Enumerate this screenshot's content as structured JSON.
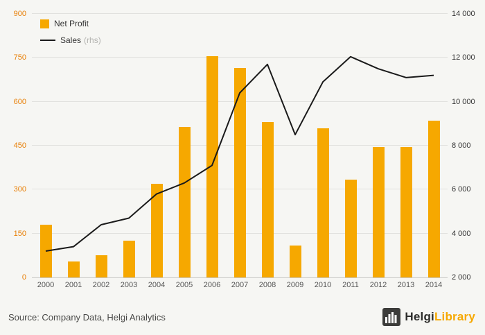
{
  "legend": {
    "net_profit_label": "Net Profit",
    "sales_label": "Sales",
    "sales_suffix": "(rhs)"
  },
  "footer": {
    "source": "Source: Company Data, Helgi Analytics",
    "logo_primary": "Helgi",
    "logo_secondary": "Library"
  },
  "colors": {
    "bar": "#f6a800",
    "line": "#1a1a1a",
    "left_axis_labels": "#e87e04",
    "right_axis_labels": "#333333",
    "background": "#f6f6f3"
  },
  "chart_data": {
    "type": "bar",
    "title": "",
    "categories": [
      "2000",
      "2001",
      "2002",
      "2003",
      "2004",
      "2005",
      "2006",
      "2007",
      "2008",
      "2009",
      "2010",
      "2011",
      "2012",
      "2013",
      "2014"
    ],
    "series": [
      {
        "name": "Net Profit",
        "type": "bar",
        "axis": "left",
        "color": "#f6a800",
        "values": [
          180,
          55,
          75,
          125,
          320,
          515,
          755,
          715,
          530,
          110,
          510,
          335,
          445,
          445,
          535
        ]
      },
      {
        "name": "Sales (rhs)",
        "type": "line",
        "axis": "right",
        "color": "#1a1a1a",
        "values": [
          3200,
          3400,
          4400,
          4700,
          5800,
          6300,
          7100,
          10400,
          11700,
          8500,
          10900,
          12050,
          11500,
          11100,
          11200
        ]
      }
    ],
    "left_axis": {
      "min": 0,
      "max": 900,
      "step": 150
    },
    "right_axis": {
      "min": 2000,
      "max": 14000,
      "step": 2000
    },
    "grid": "horizontal",
    "legend_position": "top-left"
  }
}
